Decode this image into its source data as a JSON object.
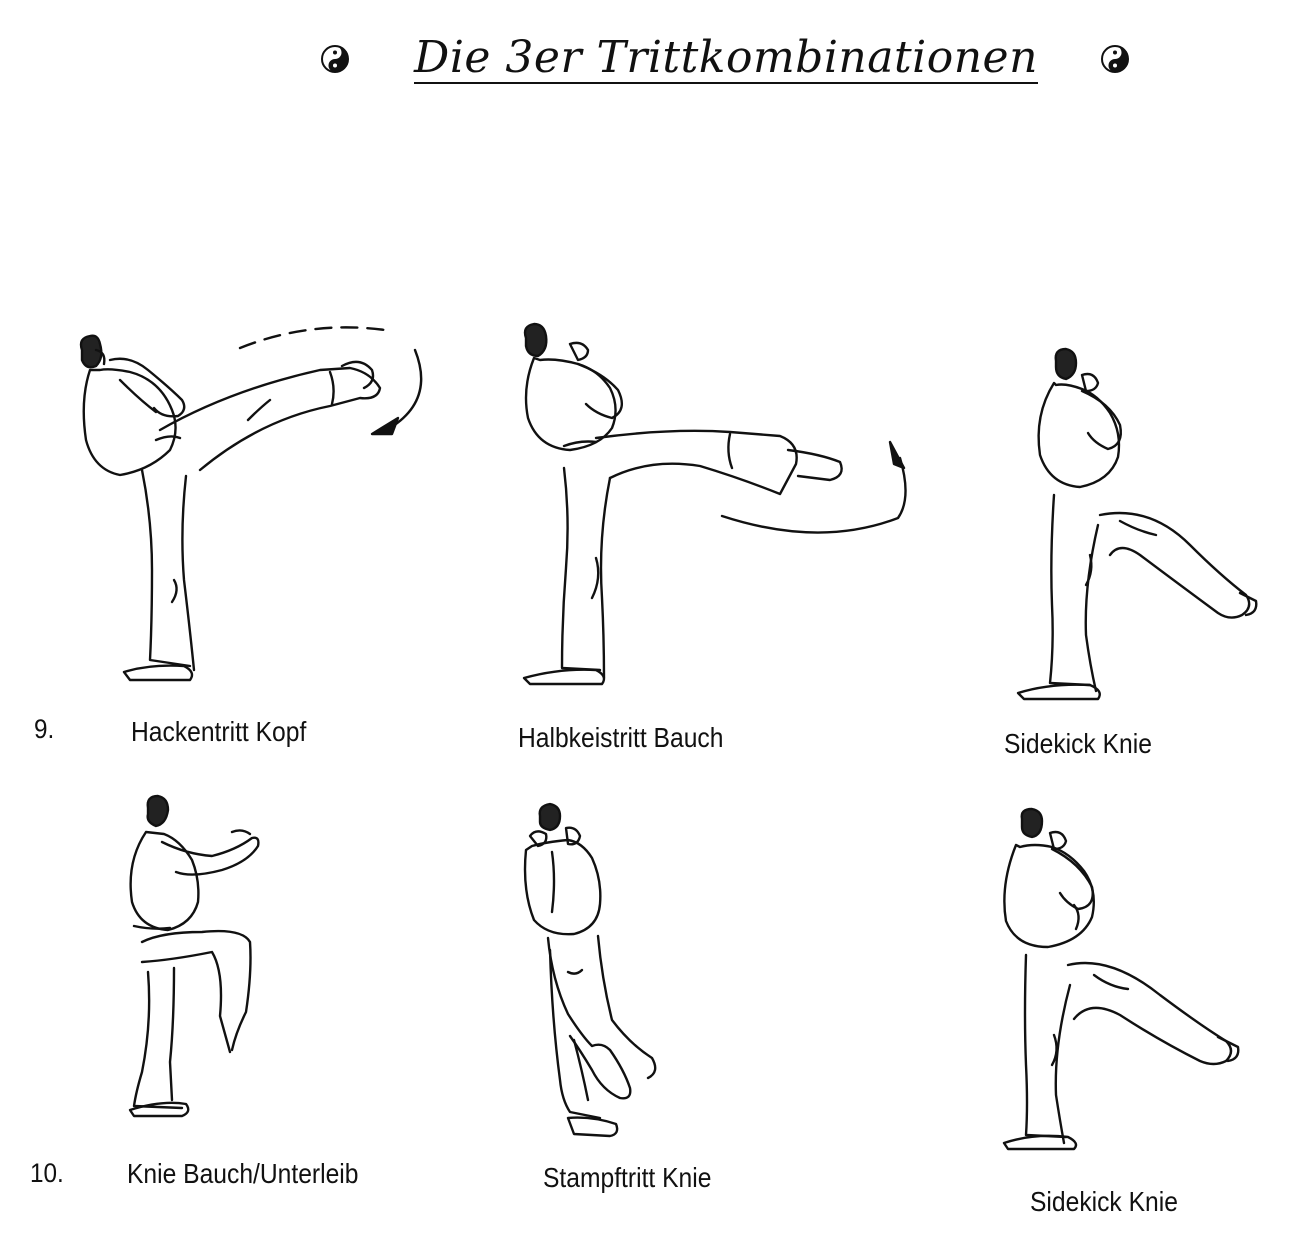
{
  "title": "Die 3er Trittkombinationen",
  "icons": {
    "left": "yin-yang-icon",
    "right": "yin-yang-icon"
  },
  "rows": [
    {
      "number": "9.",
      "kicks": [
        {
          "label": "Hackentritt Kopf",
          "illustration": "heel-kick-figure"
        },
        {
          "label": "Halbkeistritt Bauch",
          "illustration": "half-circle-kick-figure"
        },
        {
          "label": "Sidekick Knie",
          "illustration": "side-kick-figure"
        }
      ]
    },
    {
      "number": "10.",
      "kicks": [
        {
          "label": "Knie Bauch/Unterleib",
          "illustration": "knee-strike-figure"
        },
        {
          "label": "Stampftritt Knie",
          "illustration": "stomp-kick-figure"
        },
        {
          "label": "Sidekick Knie",
          "illustration": "side-kick-figure"
        }
      ]
    }
  ],
  "colors": {
    "ink": "#111111",
    "paper": "#ffffff"
  }
}
